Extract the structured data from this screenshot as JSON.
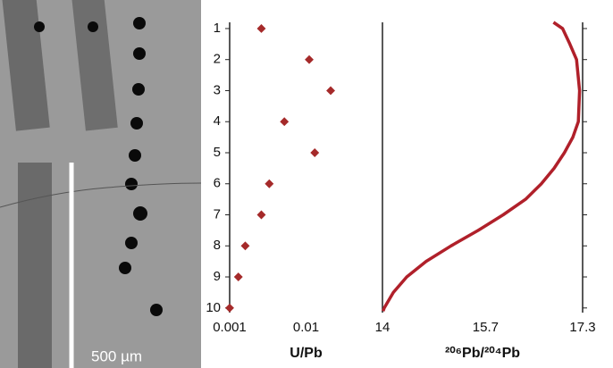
{
  "image": {
    "scale_label": "500 µm"
  },
  "chart_data": [
    {
      "type": "scatter",
      "x_label": "U/Pb",
      "log_x": true,
      "color": "#a52a2a",
      "x": [
        0.0026,
        0.011,
        0.021,
        0.0052,
        0.013,
        0.0033,
        0.0026,
        0.0016,
        0.0013,
        0.001
      ],
      "y": [
        1,
        2,
        3,
        4,
        5,
        6,
        7,
        8,
        9,
        10
      ],
      "xlim": [
        0.001,
        0.1
      ],
      "xticks": [
        0.001,
        0.01
      ],
      "ylim": [
        10.15,
        0.8
      ],
      "yticks": [
        1,
        2,
        3,
        4,
        5,
        6,
        7,
        8,
        9,
        10
      ]
    },
    {
      "type": "line",
      "x_label": "²⁰⁶Pb/²⁰⁴Pb",
      "color": "#b0202a",
      "x": [
        16.82,
        16.97,
        17.09,
        17.2,
        17.25,
        17.23,
        17.14,
        17.0,
        16.83,
        16.62,
        16.36,
        15.99,
        15.58,
        15.13,
        14.72,
        14.4,
        14.18,
        14.03,
        14.01
      ],
      "y": [
        0.8,
        1,
        1.5,
        2,
        3,
        4,
        4.5,
        5,
        5.5,
        6,
        6.5,
        7,
        7.5,
        8,
        8.5,
        9,
        9.5,
        10,
        10.1
      ],
      "xlim": [
        14,
        17.3
      ],
      "xticks": [
        14,
        15.7,
        17.3
      ],
      "ylim": [
        10.15,
        0.8
      ],
      "yticks": [
        1,
        2,
        3,
        4,
        5,
        6,
        7,
        8,
        9,
        10
      ]
    }
  ]
}
